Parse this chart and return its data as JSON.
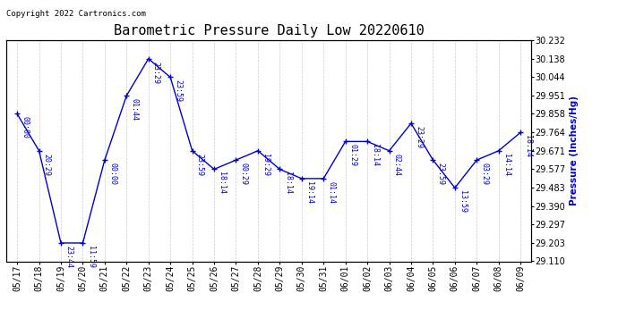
{
  "title": "Barometric Pressure Daily Low 20220610",
  "ylabel": "Pressure (Inches/Hg)",
  "copyright": "Copyright 2022 Cartronics.com",
  "background_color": "#ffffff",
  "line_color": "#0000cc",
  "grid_color": "#cccccc",
  "dates": [
    "05/17",
    "05/18",
    "05/19",
    "05/20",
    "05/21",
    "05/22",
    "05/23",
    "05/24",
    "05/25",
    "05/26",
    "05/27",
    "05/28",
    "05/29",
    "05/30",
    "05/31",
    "06/01",
    "06/02",
    "06/03",
    "06/04",
    "06/05",
    "06/06",
    "06/07",
    "06/08",
    "06/09"
  ],
  "values": [
    29.858,
    29.671,
    29.203,
    29.203,
    29.624,
    29.951,
    30.138,
    30.044,
    29.671,
    29.577,
    29.624,
    29.671,
    29.577,
    29.53,
    29.53,
    29.718,
    29.718,
    29.671,
    29.81,
    29.624,
    29.483,
    29.624,
    29.671,
    29.764
  ],
  "annotations": [
    "00:00",
    "20:29",
    "23:44",
    "11:59",
    "00:00",
    "01:44",
    "23:29",
    "23:59",
    "23:59",
    "18:14",
    "00:29",
    "19:29",
    "18:14",
    "19:14",
    "01:14",
    "01:29",
    "18:14",
    "02:44",
    "23:29",
    "23:59",
    "13:59",
    "03:29",
    "14:14",
    "18:14"
  ],
  "ylim": [
    29.11,
    30.232
  ],
  "yticks": [
    29.11,
    29.203,
    29.297,
    29.39,
    29.483,
    29.577,
    29.671,
    29.764,
    29.858,
    29.951,
    30.044,
    30.138,
    30.232
  ],
  "title_fontsize": 11,
  "tick_fontsize": 7,
  "annotation_fontsize": 6,
  "copyright_fontsize": 6.5,
  "ylabel_fontsize": 7.5
}
